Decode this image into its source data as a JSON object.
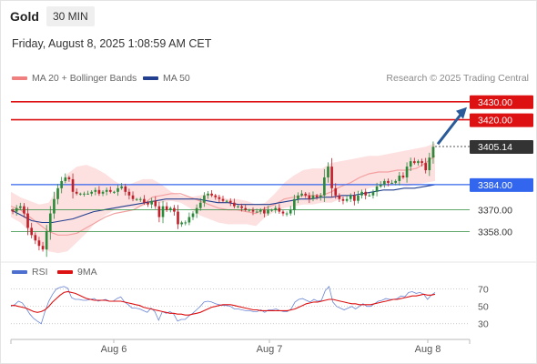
{
  "header": {
    "symbol": "Gold",
    "timeframe": "30 MIN",
    "datetime": "Friday, August 8, 2025 1:08:59 AM CET"
  },
  "legend": {
    "bollinger": "MA 20 + Bollinger Bands",
    "ma50": "MA 50",
    "rsi": "RSI",
    "rsi_ma": "9MA"
  },
  "credit": "Research © 2025 Trading Central",
  "colors": {
    "up": "#2a8a3a",
    "down": "#c0202a",
    "resistance": "#dd1111",
    "support": "#3366ee",
    "ma50": "#233f8f",
    "ma20": "#f3a0a0",
    "bands": "#fde0e0",
    "target_arrow": "#2a5a9a",
    "pivot_label": "#333333"
  },
  "chart_data": [
    {
      "type": "candlestick",
      "y_range": [
        3340,
        3440
      ],
      "x_labels": [
        "Aug 6",
        "Aug 7",
        "Aug 8"
      ],
      "levels": [
        {
          "value": 3430.0,
          "label": "3430.00",
          "kind": "resistance"
        },
        {
          "value": 3420.0,
          "label": "3420.00",
          "kind": "resistance"
        },
        {
          "value": 3405.14,
          "label": "3405.14",
          "kind": "last-price"
        },
        {
          "value": 3384.0,
          "label": "3384.00",
          "kind": "pivot"
        },
        {
          "value": 3370.0,
          "label": "3370.00",
          "kind": "support"
        },
        {
          "value": 3358.0,
          "label": "3358.00",
          "kind": "support"
        }
      ],
      "closes": [
        3369,
        3371,
        3372,
        3368,
        3360,
        3356,
        3353,
        3350,
        3348,
        3358,
        3368,
        3376,
        3382,
        3386,
        3388,
        3387,
        3380,
        3379,
        3379,
        3379,
        3379,
        3380,
        3381,
        3379,
        3380,
        3381,
        3380,
        3380,
        3382,
        3383,
        3380,
        3378,
        3376,
        3376,
        3376,
        3374,
        3373,
        3375,
        3372,
        3366,
        3372,
        3370,
        3371,
        3369,
        3362,
        3363,
        3363,
        3366,
        3368,
        3371,
        3374,
        3378,
        3379,
        3378,
        3377,
        3376,
        3375,
        3375,
        3374,
        3372,
        3372,
        3371,
        3370,
        3370,
        3369,
        3369,
        3370,
        3368,
        3370,
        3370,
        3371,
        3369,
        3368,
        3368,
        3370,
        3376,
        3378,
        3379,
        3378,
        3376,
        3378,
        3377,
        3378,
        3388,
        3394,
        3382,
        3378,
        3376,
        3375,
        3376,
        3378,
        3375,
        3378,
        3380,
        3378,
        3378,
        3380,
        3383,
        3384,
        3386,
        3385,
        3385,
        3386,
        3389,
        3388,
        3394,
        3397,
        3396,
        3397,
        3396,
        3392,
        3399,
        3405
      ],
      "ma20": [
        3372,
        3370,
        3366,
        3362,
        3358,
        3356,
        3356,
        3357,
        3360,
        3363,
        3366,
        3368,
        3369,
        3370,
        3373,
        3377,
        3378,
        3379,
        3379,
        3377,
        3375,
        3373,
        3371,
        3370,
        3370,
        3369,
        3368,
        3371,
        3373,
        3376,
        3377,
        3378,
        3378,
        3378,
        3380,
        3383,
        3385,
        3388,
        3390,
        3391,
        3391,
        3392,
        3392,
        3393,
        3396,
        3400
      ],
      "ma50": [
        3370,
        3367,
        3364,
        3363,
        3363,
        3364,
        3365,
        3367,
        3369,
        3370,
        3371,
        3372,
        3373,
        3374,
        3375,
        3376,
        3376,
        3376,
        3376,
        3375,
        3374,
        3374,
        3373,
        3373,
        3373,
        3373,
        3374,
        3375,
        3376,
        3376,
        3377,
        3377,
        3378,
        3378,
        3379,
        3380,
        3381,
        3381,
        3382,
        3382,
        3383,
        3384
      ],
      "band_upper": [
        3380,
        3377,
        3375,
        3373,
        3374,
        3382,
        3390,
        3394,
        3395,
        3393,
        3390,
        3386,
        3383,
        3385,
        3387,
        3387,
        3384,
        3380,
        3378,
        3377,
        3378,
        3379,
        3378,
        3376,
        3376,
        3375,
        3373,
        3374,
        3379,
        3385,
        3389,
        3392,
        3393,
        3393,
        3396,
        3397,
        3398,
        3399,
        3400,
        3400,
        3401,
        3402,
        3403,
        3404,
        3405,
        3407
      ],
      "band_lower": [
        3366,
        3363,
        3358,
        3351,
        3347,
        3346,
        3347,
        3352,
        3357,
        3363,
        3367,
        3370,
        3371,
        3371,
        3372,
        3374,
        3374,
        3375,
        3374,
        3371,
        3367,
        3365,
        3363,
        3362,
        3362,
        3362,
        3361,
        3366,
        3369,
        3371,
        3372,
        3373,
        3373,
        3374,
        3374,
        3376,
        3378,
        3380,
        3382,
        3383,
        3383,
        3384,
        3383,
        3384,
        3385,
        3386
      ]
    },
    {
      "type": "line",
      "name": "RSI",
      "y_ticks": [
        70,
        50,
        30
      ],
      "y_range": [
        15,
        78
      ],
      "rsi": [
        50,
        52,
        56,
        54,
        48,
        41,
        36,
        33,
        30,
        44,
        56,
        64,
        70,
        72,
        73,
        71,
        60,
        58,
        58,
        57,
        57,
        58,
        59,
        56,
        57,
        58,
        56,
        56,
        59,
        61,
        55,
        52,
        48,
        48,
        47,
        45,
        43,
        48,
        44,
        34,
        44,
        42,
        44,
        41,
        33,
        35,
        35,
        39,
        42,
        46,
        50,
        55,
        56,
        55,
        53,
        52,
        51,
        51,
        50,
        47,
        47,
        46,
        45,
        45,
        44,
        44,
        46,
        43,
        46,
        46,
        47,
        45,
        44,
        44,
        47,
        55,
        58,
        59,
        57,
        55,
        58,
        56,
        57,
        68,
        73,
        55,
        50,
        48,
        46,
        48,
        50,
        47,
        50,
        53,
        50,
        50,
        53,
        56,
        57,
        59,
        58,
        58,
        59,
        62,
        61,
        66,
        67,
        65,
        66,
        64,
        58,
        63,
        66
      ],
      "ma9": [
        51,
        51,
        50,
        49,
        48,
        46,
        44,
        43,
        44,
        46,
        50,
        55,
        59,
        63,
        66,
        67,
        66,
        65,
        63,
        61,
        59,
        58,
        57,
        57,
        57,
        57,
        56,
        56,
        56,
        56,
        55,
        54,
        53,
        52,
        51,
        49,
        48,
        47,
        46,
        45,
        44,
        43,
        42,
        42,
        41,
        41,
        40,
        40,
        41,
        42,
        43,
        45,
        47,
        49,
        50,
        51,
        52,
        52,
        52,
        51,
        50,
        49,
        48,
        47,
        46,
        46,
        45,
        45,
        45,
        45,
        45,
        45,
        45,
        45,
        46,
        47,
        49,
        51,
        53,
        54,
        55,
        55,
        56,
        57,
        58,
        58,
        57,
        56,
        55,
        54,
        53,
        53,
        52,
        52,
        52,
        52,
        53,
        54,
        55,
        56,
        57,
        58,
        58,
        59,
        60,
        61,
        62,
        62,
        63,
        64,
        63,
        63,
        64
      ]
    }
  ]
}
